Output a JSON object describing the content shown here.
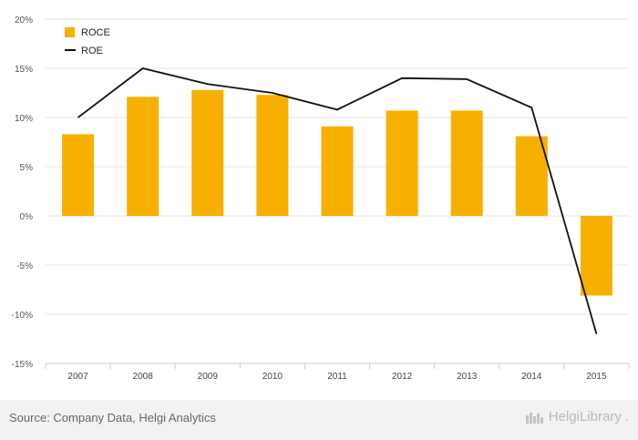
{
  "chart_data": {
    "type": "bar",
    "categories": [
      "2007",
      "2008",
      "2009",
      "2010",
      "2011",
      "2012",
      "2013",
      "2014",
      "2015"
    ],
    "series": [
      {
        "name": "ROCE",
        "kind": "bar",
        "color": "#f8b000",
        "values": [
          8.3,
          12.1,
          12.8,
          12.3,
          9.1,
          10.7,
          10.7,
          8.1,
          -8.1
        ]
      },
      {
        "name": "ROE",
        "kind": "line",
        "color": "#111111",
        "values": [
          10.0,
          15.0,
          13.4,
          12.5,
          10.8,
          14.0,
          13.9,
          11.0,
          -12.0
        ]
      }
    ],
    "ylim": [
      -15,
      20
    ],
    "yticks": [
      "20%",
      "15%",
      "10%",
      "5%",
      "0%",
      "-5%",
      "-10%",
      "-15%"
    ],
    "ytick_values": [
      20,
      15,
      10,
      5,
      0,
      -5,
      -10,
      -15
    ],
    "grid": true,
    "legend": "top-left"
  },
  "footer": {
    "source": "Source: Company Data, Helgi Analytics",
    "brand": "HelgiLibrary",
    "brand_dot": "."
  }
}
